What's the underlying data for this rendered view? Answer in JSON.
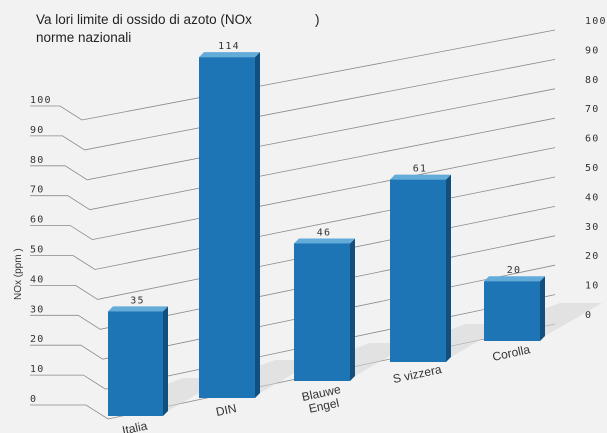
{
  "chart_data": {
    "type": "bar",
    "title": [
      "Va lori limite di ossido di azoto (NOx",
      "norme nazionali"
    ],
    "title_close_paren": ")",
    "ylabel": "NOx (ppm )",
    "categories": [
      [
        "Italia"
      ],
      [
        "DIN"
      ],
      [
        "Blauwe",
        "Engel"
      ],
      [
        "S vizzera"
      ],
      [
        "Corolla"
      ]
    ],
    "values": [
      35,
      114,
      46,
      61,
      20
    ],
    "value_labels": [
      "35",
      "114",
      "46",
      "61",
      "20"
    ],
    "left_ticks": [
      "0",
      "10",
      "20",
      "30",
      "40",
      "50",
      "60",
      "70",
      "80",
      "90",
      "100"
    ],
    "right_ticks": [
      "0",
      "10",
      "20",
      "30",
      "40",
      "50",
      "60",
      "70",
      "80",
      "90",
      "100"
    ],
    "ylim": [
      0,
      100
    ],
    "grid": true,
    "colors": {
      "bar_front": "#1e75b6",
      "bar_top": "#63abd9",
      "bar_side": "#124f7e",
      "shadow": "#d6d6d6",
      "background": "#f2f2f2"
    }
  }
}
